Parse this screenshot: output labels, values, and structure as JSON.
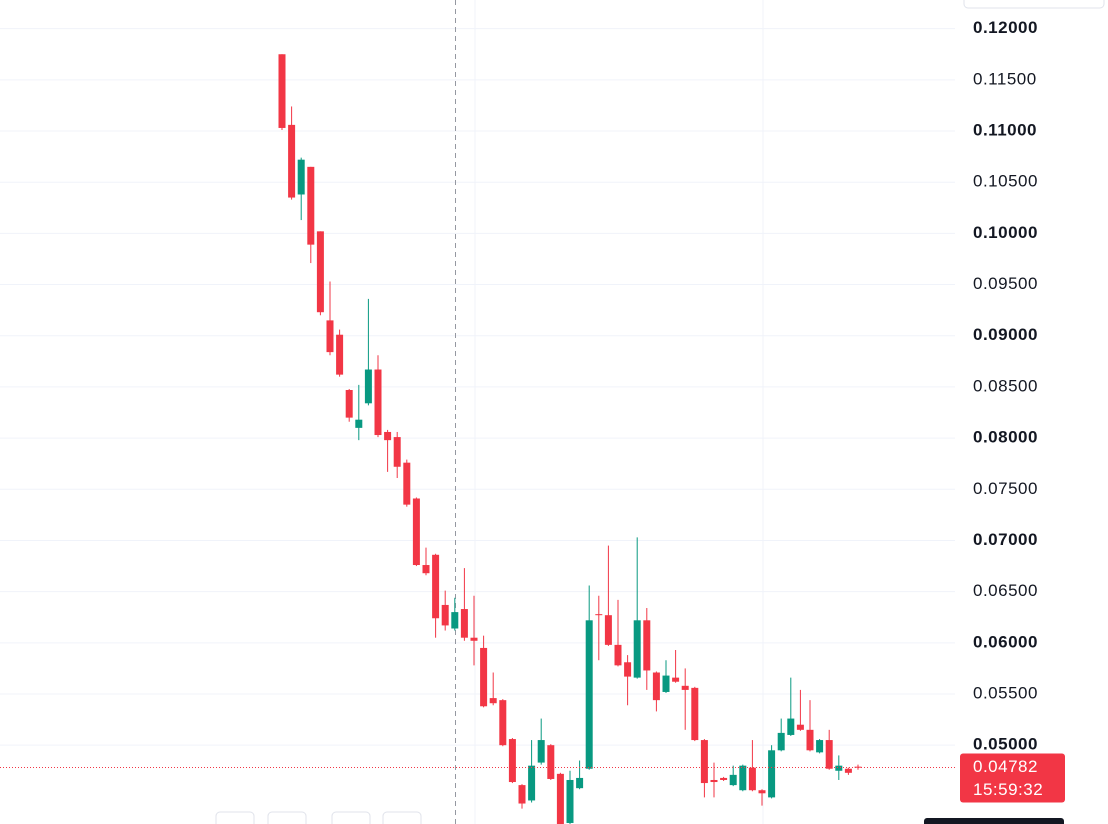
{
  "chart_data": {
    "type": "candlestick",
    "up_color": "#089981",
    "down_color": "#f23645",
    "open": [
      0.1175,
      0.1106,
      0.1038,
      0.1065,
      0.1002,
      0.0915,
      0.0901,
      0.0847,
      0.081,
      0.0834,
      0.0867,
      0.0806,
      0.0801,
      0.0776,
      0.0741,
      0.0676,
      0.0686,
      0.0637,
      0.0614,
      0.0633,
      0.0605,
      0.0595,
      0.0546,
      0.0544,
      0.0506,
      0.0461,
      0.0446,
      0.0483,
      0.05,
      0.0472,
      0.0424,
      0.0458,
      0.0477,
      0.0628,
      0.0627,
      0.0598,
      0.0581,
      0.0566,
      0.0622,
      0.0571,
      0.0552,
      0.0566,
      0.0558,
      0.0556,
      0.0505,
      0.0466,
      0.0468,
      0.0461,
      0.0456,
      0.0478,
      0.0456,
      0.0449,
      0.0495,
      0.051,
      0.052,
      0.0515,
      0.0493,
      0.0505,
      0.0475,
      0.0477,
      0.0479
    ],
    "high": [
      0.1175,
      0.1124,
      0.1074,
      0.1065,
      0.1002,
      0.0953,
      0.0906,
      0.0848,
      0.0852,
      0.0936,
      0.0881,
      0.0808,
      0.0806,
      0.0779,
      0.0742,
      0.0693,
      0.0687,
      0.0651,
      0.0644,
      0.0673,
      0.0646,
      0.0607,
      0.0571,
      0.0545,
      0.0507,
      0.0462,
      0.0505,
      0.0526,
      0.0501,
      0.0473,
      0.0475,
      0.0485,
      0.0656,
      0.0646,
      0.0695,
      0.0642,
      0.0588,
      0.0703,
      0.0634,
      0.0572,
      0.0583,
      0.0593,
      0.0575,
      0.0557,
      0.0506,
      0.0483,
      0.0469,
      0.048,
      0.0481,
      0.0505,
      0.0457,
      0.05,
      0.0526,
      0.0566,
      0.0554,
      0.0544,
      0.0506,
      0.0515,
      0.049,
      0.0478,
      0.0481
    ],
    "low": [
      0.1101,
      0.1033,
      0.1013,
      0.0971,
      0.092,
      0.0881,
      0.086,
      0.0816,
      0.0798,
      0.0832,
      0.0801,
      0.0767,
      0.0761,
      0.0733,
      0.0675,
      0.0666,
      0.0605,
      0.0612,
      0.0612,
      0.0602,
      0.0578,
      0.0537,
      0.0539,
      0.0499,
      0.0463,
      0.0438,
      0.0444,
      0.0481,
      0.0466,
      0.0421,
      0.0423,
      0.0457,
      0.0476,
      0.0583,
      0.0597,
      0.0577,
      0.0539,
      0.0565,
      0.0554,
      0.0533,
      0.0551,
      0.0561,
      0.0515,
      0.0504,
      0.0449,
      0.0449,
      0.0465,
      0.046,
      0.0455,
      0.0455,
      0.0441,
      0.0448,
      0.0494,
      0.0509,
      0.0514,
      0.0494,
      0.0492,
      0.0476,
      0.0466,
      0.0471,
      0.0476
    ],
    "close": [
      0.1103,
      0.1035,
      0.1072,
      0.0989,
      0.0923,
      0.0884,
      0.0862,
      0.082,
      0.0818,
      0.0867,
      0.0803,
      0.0798,
      0.0772,
      0.0735,
      0.0676,
      0.0668,
      0.0624,
      0.0617,
      0.063,
      0.0605,
      0.0602,
      0.0538,
      0.0541,
      0.05,
      0.0464,
      0.0443,
      0.048,
      0.0505,
      0.0467,
      0.0422,
      0.0466,
      0.0468,
      0.0622,
      0.0627,
      0.0598,
      0.0578,
      0.0567,
      0.0622,
      0.0573,
      0.0544,
      0.0568,
      0.0562,
      0.0554,
      0.0505,
      0.0463,
      0.0464,
      0.0466,
      0.0471,
      0.048,
      0.0456,
      0.0453,
      0.0495,
      0.0512,
      0.0526,
      0.0515,
      0.0495,
      0.0505,
      0.0477,
      0.048,
      0.0473,
      0.04782
    ],
    "ylim": [
      0.0423,
      0.1228
    ],
    "yticks": [
      {
        "value": 0.12,
        "label": "0.12000"
      },
      {
        "value": 0.115,
        "label": "0.11500"
      },
      {
        "value": 0.11,
        "label": "0.11000"
      },
      {
        "value": 0.105,
        "label": "0.10500"
      },
      {
        "value": 0.1,
        "label": "0.10000"
      },
      {
        "value": 0.095,
        "label": "0.09500"
      },
      {
        "value": 0.09,
        "label": "0.09000"
      },
      {
        "value": 0.085,
        "label": "0.08500"
      },
      {
        "value": 0.08,
        "label": "0.08000"
      },
      {
        "value": 0.075,
        "label": "0.07500"
      },
      {
        "value": 0.07,
        "label": "0.07000"
      },
      {
        "value": 0.065,
        "label": "0.06500"
      },
      {
        "value": 0.06,
        "label": "0.06000"
      },
      {
        "value": 0.055,
        "label": "0.05500"
      },
      {
        "value": 0.05,
        "label": "0.05000"
      }
    ],
    "grid": true,
    "last_price": 0.04782,
    "countdown": "15:59:32"
  }
}
